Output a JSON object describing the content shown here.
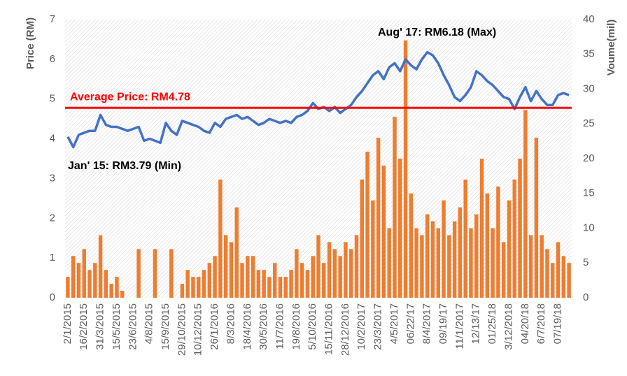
{
  "chart_data": {
    "type": "combo",
    "y_label": "Price (RM)",
    "y2_label": "Voume(mil)",
    "ylim": [
      0,
      7
    ],
    "yticks": [
      0,
      1,
      2,
      3,
      4,
      5,
      6,
      7
    ],
    "y2lim": [
      0,
      40
    ],
    "y2ticks": [
      0,
      5,
      10,
      15,
      20,
      25,
      30,
      35,
      40
    ],
    "categories": [
      "2/1/2015",
      null,
      null,
      "16/2/2015",
      null,
      null,
      "31/3/2015",
      null,
      null,
      "15/5/2015",
      null,
      null,
      "23/6/2015",
      null,
      null,
      "4/8/2015",
      null,
      null,
      "15/9/2015",
      null,
      null,
      "29/10/2015",
      null,
      null,
      "10/12/2015",
      null,
      null,
      "26/1/2016",
      null,
      null,
      "8/3/2016",
      null,
      null,
      "18/4/2016",
      null,
      null,
      "30/5/2016",
      null,
      null,
      "11/7/2016",
      null,
      null,
      "19/8/2016",
      null,
      null,
      "5/10/2016",
      null,
      null,
      "15/11/2016",
      null,
      null,
      "28/12/2016",
      null,
      null,
      "10/2/2017",
      null,
      null,
      "23/3/2017",
      null,
      null,
      "4/5/2017",
      null,
      null,
      "06/22/17",
      null,
      null,
      "8/4/2017",
      null,
      null,
      "09/19/17",
      null,
      null,
      "11/1/2017",
      null,
      null,
      "12/13/17",
      null,
      null,
      "01/25/18",
      null,
      null,
      "3/12/2018",
      null,
      null,
      "04/20/18",
      null,
      null,
      "6/7/2018",
      null,
      null,
      "07/19/18",
      null,
      null
    ],
    "series": [
      {
        "type": "bar",
        "axis": "y2",
        "color": "#ED7D31",
        "values": [
          3,
          6,
          5,
          7,
          4,
          5,
          9,
          4,
          2,
          3,
          1,
          0,
          0,
          7,
          0,
          0,
          7,
          0,
          0,
          7,
          0,
          2,
          4,
          3,
          3,
          4,
          5,
          6,
          17,
          9,
          8,
          13,
          5,
          6,
          6,
          4,
          4,
          3,
          5,
          3,
          3,
          4,
          7,
          5,
          4,
          6,
          9,
          5,
          8,
          7,
          6,
          8,
          7,
          9,
          17,
          21,
          14,
          23,
          19,
          10,
          26,
          20,
          37,
          15,
          10,
          9,
          12,
          11,
          10,
          14,
          9,
          11,
          13,
          17,
          10,
          12,
          20,
          15,
          10,
          16,
          8,
          14,
          17,
          20,
          27,
          9,
          23,
          9,
          7,
          5,
          8,
          6,
          5
        ]
      },
      {
        "type": "line",
        "color": "#4472C4",
        "values": [
          4.05,
          3.79,
          4.1,
          4.15,
          4.2,
          4.2,
          4.6,
          4.35,
          4.3,
          4.3,
          4.25,
          4.2,
          4.25,
          4.3,
          3.95,
          4.0,
          3.95,
          3.9,
          4.4,
          4.2,
          4.1,
          4.45,
          4.4,
          4.35,
          4.3,
          4.2,
          4.15,
          4.4,
          4.3,
          4.5,
          4.55,
          4.6,
          4.5,
          4.55,
          4.45,
          4.35,
          4.4,
          4.5,
          4.45,
          4.4,
          4.45,
          4.4,
          4.55,
          4.6,
          4.7,
          4.9,
          4.75,
          4.8,
          4.7,
          4.8,
          4.65,
          4.75,
          4.85,
          5.05,
          5.2,
          5.4,
          5.6,
          5.7,
          5.5,
          5.8,
          5.9,
          5.7,
          6.0,
          5.85,
          5.75,
          6.0,
          6.18,
          6.1,
          5.9,
          5.6,
          5.35,
          5.05,
          4.95,
          5.1,
          5.3,
          5.7,
          5.6,
          5.45,
          5.35,
          5.2,
          5.05,
          5.0,
          4.75,
          5.05,
          5.3,
          4.95,
          5.2,
          5.0,
          4.85,
          4.85,
          5.1,
          5.15,
          5.1
        ]
      }
    ],
    "hline": {
      "value": 4.78,
      "color": "#FF0000",
      "label": "Average Price: RM4.78"
    },
    "annotations": [
      "Aug' 17: RM6.18 (Max)",
      "Jan' 15: RM3.79 (Min)"
    ],
    "grid": false
  }
}
